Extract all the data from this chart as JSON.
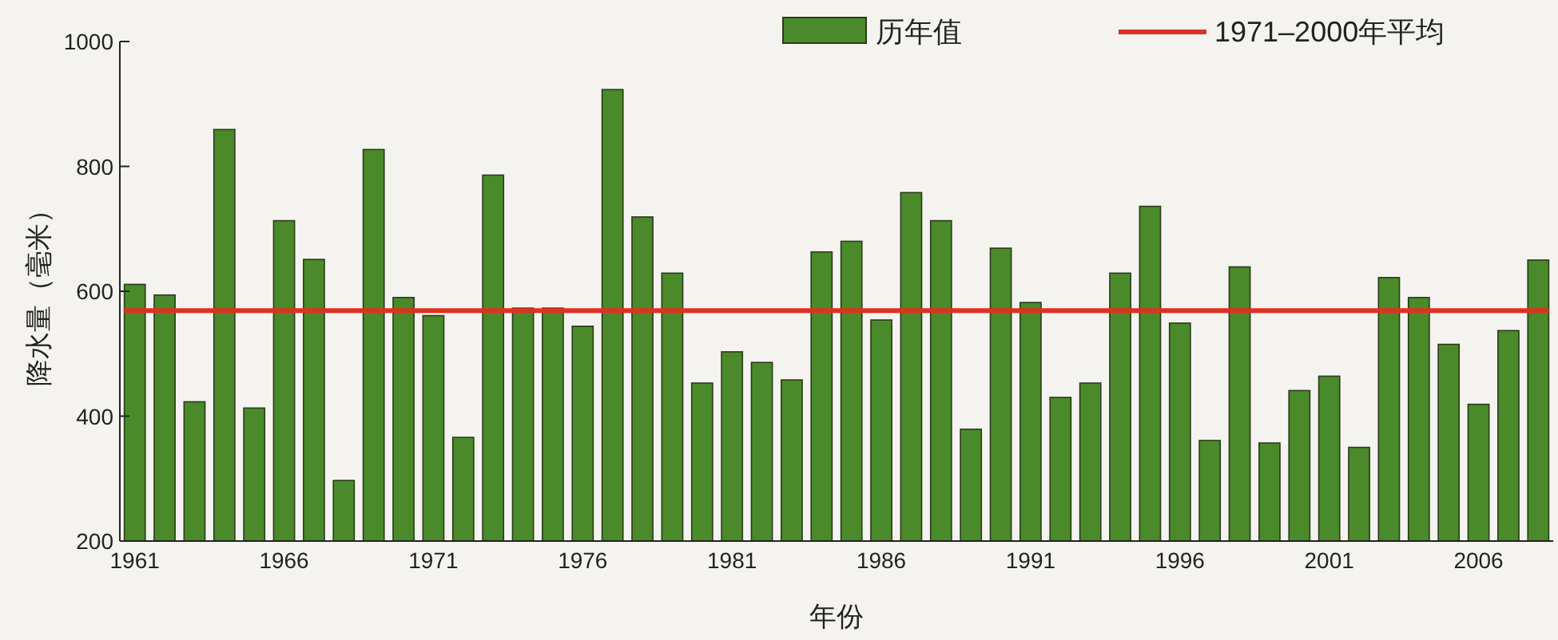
{
  "chart_data": {
    "type": "bar",
    "xlabel": "年份",
    "ylabel": "降水量（毫米）",
    "categories": [
      "1961",
      null,
      null,
      null,
      null,
      "1966",
      null,
      null,
      null,
      null,
      "1971",
      null,
      null,
      null,
      null,
      "1976",
      null,
      null,
      null,
      null,
      "1981",
      null,
      null,
      null,
      null,
      "1986",
      null,
      null,
      null,
      null,
      "1991",
      null,
      null,
      null,
      null,
      "1996",
      null,
      null,
      null,
      null,
      "2001",
      null,
      null,
      null,
      null,
      "2006",
      null,
      null
    ],
    "series": [
      {
        "name": "历年值",
        "color": "#4a8a2a",
        "values": [
          611,
          594,
          423,
          859,
          413,
          713,
          651,
          297,
          827,
          590,
          561,
          366,
          786,
          573,
          573,
          544,
          923,
          719,
          629,
          453,
          503,
          486,
          458,
          663,
          680,
          554,
          758,
          713,
          379,
          669,
          582,
          430,
          453,
          629,
          736,
          549,
          361,
          639,
          357,
          441,
          464,
          350,
          622,
          590,
          515,
          419,
          537,
          650
        ]
      }
    ],
    "ylim": [
      200,
      1000
    ],
    "yticks": [
      200,
      400,
      600,
      800,
      1000
    ],
    "ref_lines": [
      {
        "axis": "y",
        "value": 569,
        "label": "1971–2000年平均",
        "color": "#e03020"
      }
    ],
    "legend": "top right"
  }
}
